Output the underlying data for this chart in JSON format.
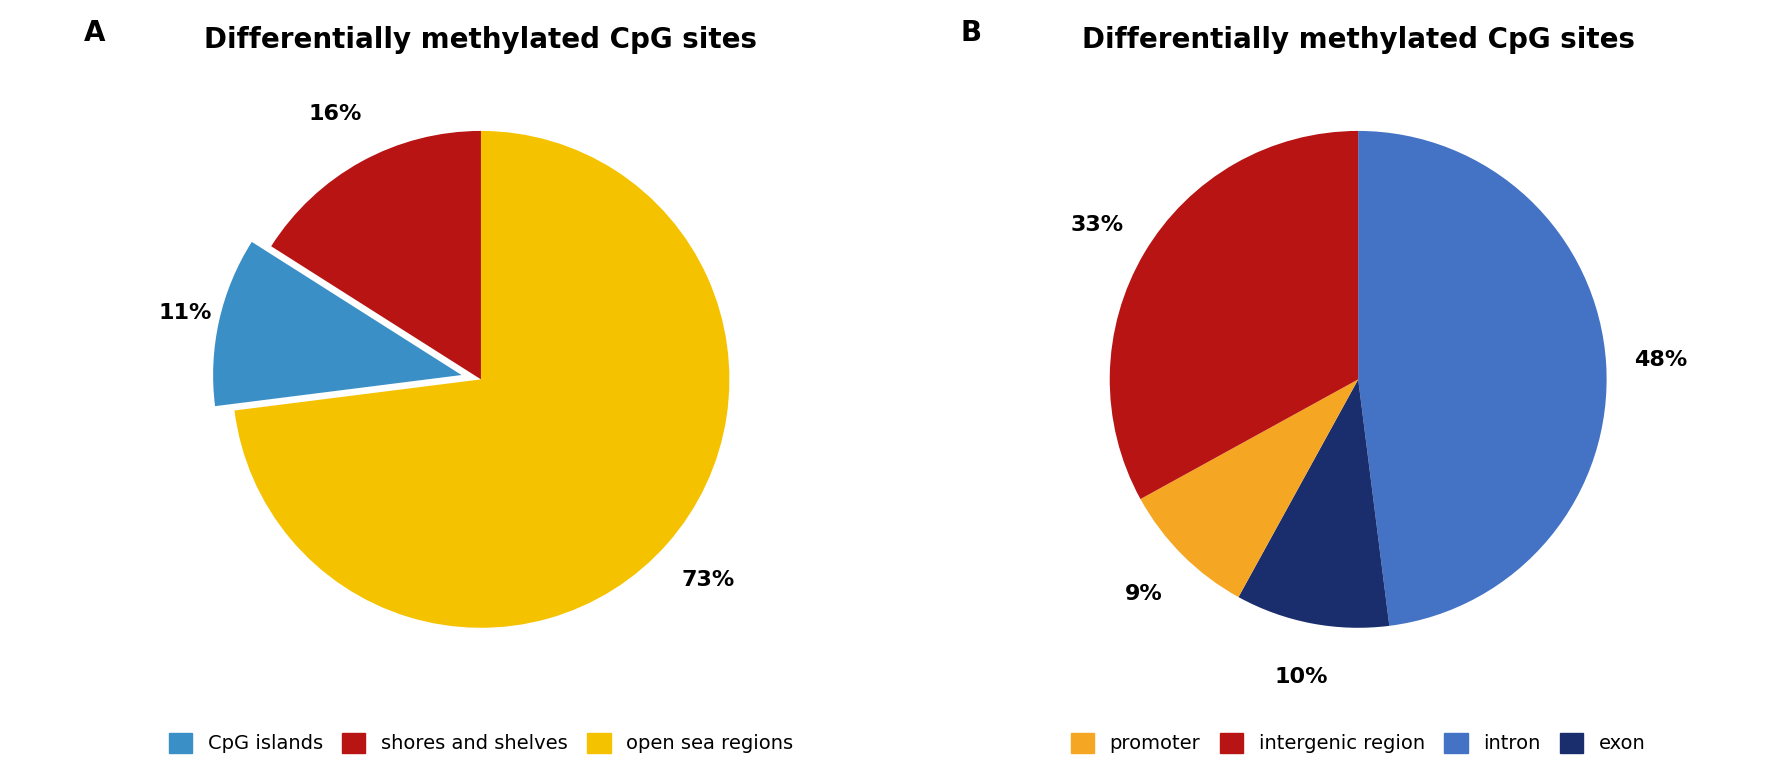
{
  "title": "Differentially methylated CpG sites",
  "chart_A": {
    "values": [
      73,
      11,
      16
    ],
    "labels": [
      "73%",
      "11%",
      "16%"
    ],
    "colors": [
      "#f5c200",
      "#3a8fc7",
      "#b81414"
    ],
    "legend_labels": [
      "CpG islands",
      "shores and shelves",
      "open sea regions"
    ],
    "legend_colors": [
      "#3a8fc7",
      "#b81414",
      "#f5c200"
    ],
    "explode": [
      0.0,
      0.08,
      0.0
    ],
    "startangle": 90
  },
  "chart_B": {
    "values": [
      48,
      10,
      9,
      33
    ],
    "labels": [
      "48%",
      "10%",
      "9%",
      "33%"
    ],
    "colors": [
      "#4472c4",
      "#1a2e6e",
      "#f5a623",
      "#b81414"
    ],
    "legend_labels": [
      "promoter",
      "intergenic region",
      "intron",
      "exon"
    ],
    "legend_colors": [
      "#f5a623",
      "#b81414",
      "#4472c4",
      "#1a2e6e"
    ],
    "explode": [
      0.0,
      0.0,
      0.0,
      0.0
    ],
    "startangle": 90
  },
  "label_fontsize": 16,
  "title_fontsize": 20,
  "legend_fontsize": 14,
  "panel_label_fontsize": 20
}
